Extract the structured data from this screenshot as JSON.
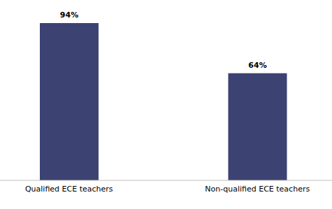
{
  "chart_data": {
    "type": "bar",
    "categories": [
      "Qualified ECE teachers",
      "Non-qualified ECE teachers"
    ],
    "values": [
      94,
      64
    ],
    "value_labels": [
      "94%",
      "64%"
    ],
    "color": "#3c4372",
    "data_labels": true,
    "tick_labels": "x",
    "grid": false
  }
}
